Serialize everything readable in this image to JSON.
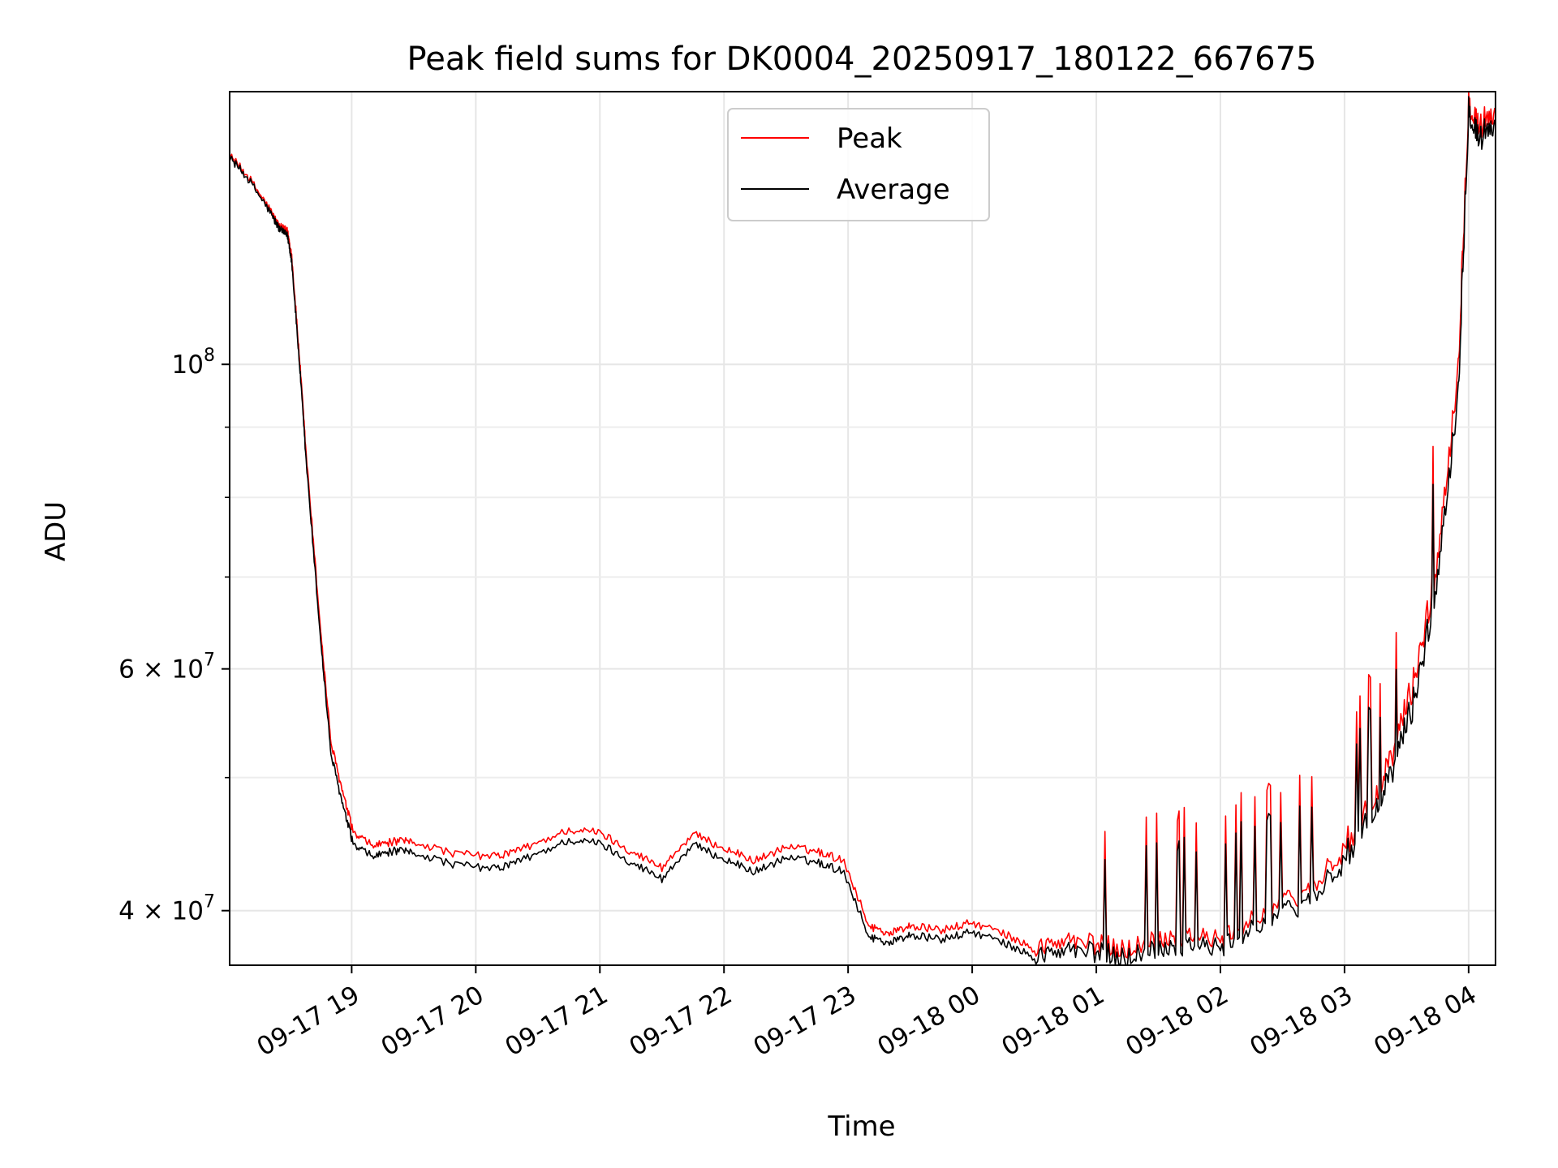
{
  "chart_data": {
    "type": "line",
    "title": "Peak field sums for DK0004_20250917_180122_667675",
    "xlabel": "Time",
    "ylabel": "ADU",
    "yscale": "log",
    "grid": true,
    "legend_position": "top-center",
    "xlim": [
      "2025-09-17 18:01",
      "2025-09-18 04:13"
    ],
    "ylim": [
      36500000,
      158000000
    ],
    "x_ticks": [
      "09-17 19",
      "09-17 20",
      "09-17 21",
      "09-17 22",
      "09-17 23",
      "09-18 00",
      "09-18 01",
      "09-18 02",
      "09-18 03",
      "09-18 04"
    ],
    "y_major_ticks": [
      {
        "value": 40000000,
        "label": "4 × 10^7",
        "mantissa": "4 × 10",
        "exp": "7"
      },
      {
        "value": 60000000,
        "label": "6 × 10^7",
        "mantissa": "6 × 10",
        "exp": "7"
      },
      {
        "value": 100000000,
        "label": "10^8",
        "mantissa": "10",
        "exp": "8"
      }
    ],
    "y_minor_ticks": [
      50000000,
      70000000,
      80000000,
      90000000
    ],
    "colors": {
      "peak": "#ff0000",
      "average": "#000000"
    },
    "series": [
      {
        "name": "Peak",
        "color": "#ff0000",
        "x": [
          "2025-09-17 18:01",
          "2025-09-17 18:10",
          "2025-09-17 18:20",
          "2025-09-17 18:25",
          "2025-09-17 18:29",
          "2025-09-17 18:31",
          "2025-09-17 18:35",
          "2025-09-17 18:38",
          "2025-09-17 18:45",
          "2025-09-17 18:50",
          "2025-09-17 18:56",
          "2025-09-17 19:01",
          "2025-09-17 19:10",
          "2025-09-17 19:20",
          "2025-09-17 19:30",
          "2025-09-17 19:50",
          "2025-09-17 20:10",
          "2025-09-17 20:25",
          "2025-09-17 20:45",
          "2025-09-17 21:00",
          "2025-09-17 21:15",
          "2025-09-17 21:30",
          "2025-09-17 21:45",
          "2025-09-17 22:00",
          "2025-09-17 22:15",
          "2025-09-17 22:30",
          "2025-09-17 22:45",
          "2025-09-17 22:58",
          "2025-09-17 23:10",
          "2025-09-17 23:20",
          "2025-09-17 23:30",
          "2025-09-17 23:45",
          "2025-09-18 00:00",
          "2025-09-18 00:15",
          "2025-09-18 00:30",
          "2025-09-18 00:45",
          "2025-09-18 01:00",
          "2025-09-18 01:15",
          "2025-09-18 01:30",
          "2025-09-18 01:45",
          "2025-09-18 02:00",
          "2025-09-18 02:15",
          "2025-09-18 02:30",
          "2025-09-18 02:45",
          "2025-09-18 03:00",
          "2025-09-18 03:15",
          "2025-09-18 03:25",
          "2025-09-18 03:35",
          "2025-09-18 03:45",
          "2025-09-18 03:55",
          "2025-09-18 04:00",
          "2025-09-18 04:05",
          "2025-09-18 04:13"
        ],
        "values": [
          142000000,
          137000000,
          130000000,
          126000000,
          125000000,
          120000000,
          100000000,
          86000000,
          64000000,
          53000000,
          48500000,
          45500000,
          44600000,
          44900000,
          44900000,
          44000000,
          43800000,
          44500000,
          45800000,
          45600000,
          44200000,
          43000000,
          45500000,
          44400000,
          43500000,
          44500000,
          44200000,
          43500000,
          39000000,
          38500000,
          39000000,
          38700000,
          39200000,
          38500000,
          37500000,
          38000000,
          37800000,
          37500000,
          38200000,
          38400000,
          38000000,
          39500000,
          40500000,
          41500000,
          44500000,
          48000000,
          53000000,
          60000000,
          72000000,
          100000000,
          156000000,
          149000000,
          153000000
        ]
      },
      {
        "name": "Average",
        "color": "#000000",
        "x": [
          "2025-09-17 18:01",
          "2025-09-17 18:10",
          "2025-09-17 18:20",
          "2025-09-17 18:25",
          "2025-09-17 18:29",
          "2025-09-17 18:31",
          "2025-09-17 18:35",
          "2025-09-17 18:38",
          "2025-09-17 18:45",
          "2025-09-17 18:50",
          "2025-09-17 18:56",
          "2025-09-17 19:01",
          "2025-09-17 19:10",
          "2025-09-17 19:20",
          "2025-09-17 19:30",
          "2025-09-17 19:50",
          "2025-09-17 20:10",
          "2025-09-17 20:25",
          "2025-09-17 20:45",
          "2025-09-17 21:00",
          "2025-09-17 21:15",
          "2025-09-17 21:30",
          "2025-09-17 21:45",
          "2025-09-17 22:00",
          "2025-09-17 22:15",
          "2025-09-17 22:30",
          "2025-09-17 22:45",
          "2025-09-17 22:58",
          "2025-09-17 23:10",
          "2025-09-17 23:20",
          "2025-09-17 23:30",
          "2025-09-17 23:45",
          "2025-09-18 00:00",
          "2025-09-18 00:15",
          "2025-09-18 00:30",
          "2025-09-18 00:45",
          "2025-09-18 01:00",
          "2025-09-18 01:15",
          "2025-09-18 01:30",
          "2025-09-18 01:45",
          "2025-09-18 02:00",
          "2025-09-18 02:15",
          "2025-09-18 02:30",
          "2025-09-18 02:45",
          "2025-09-18 03:00",
          "2025-09-18 03:15",
          "2025-09-18 03:25",
          "2025-09-18 03:35",
          "2025-09-18 03:45",
          "2025-09-18 03:55",
          "2025-09-18 04:00",
          "2025-09-18 04:05",
          "2025-09-18 04:13"
        ],
        "values": [
          141500000,
          136500000,
          129500000,
          125500000,
          124000000,
          119000000,
          99000000,
          85000000,
          63000000,
          52000000,
          47500000,
          44600000,
          43800000,
          44200000,
          44100000,
          43200000,
          42900000,
          43700000,
          45000000,
          44800000,
          43400000,
          42200000,
          44700000,
          43600000,
          42700000,
          43700000,
          43400000,
          42700000,
          38300000,
          37900000,
          38400000,
          38100000,
          38600000,
          37900000,
          37000000,
          37400000,
          37300000,
          37000000,
          37600000,
          37800000,
          37500000,
          38900000,
          39800000,
          40800000,
          43600000,
          47000000,
          51500000,
          58000000,
          70000000,
          96000000,
          154000000,
          146000000,
          150000000
        ]
      }
    ]
  }
}
